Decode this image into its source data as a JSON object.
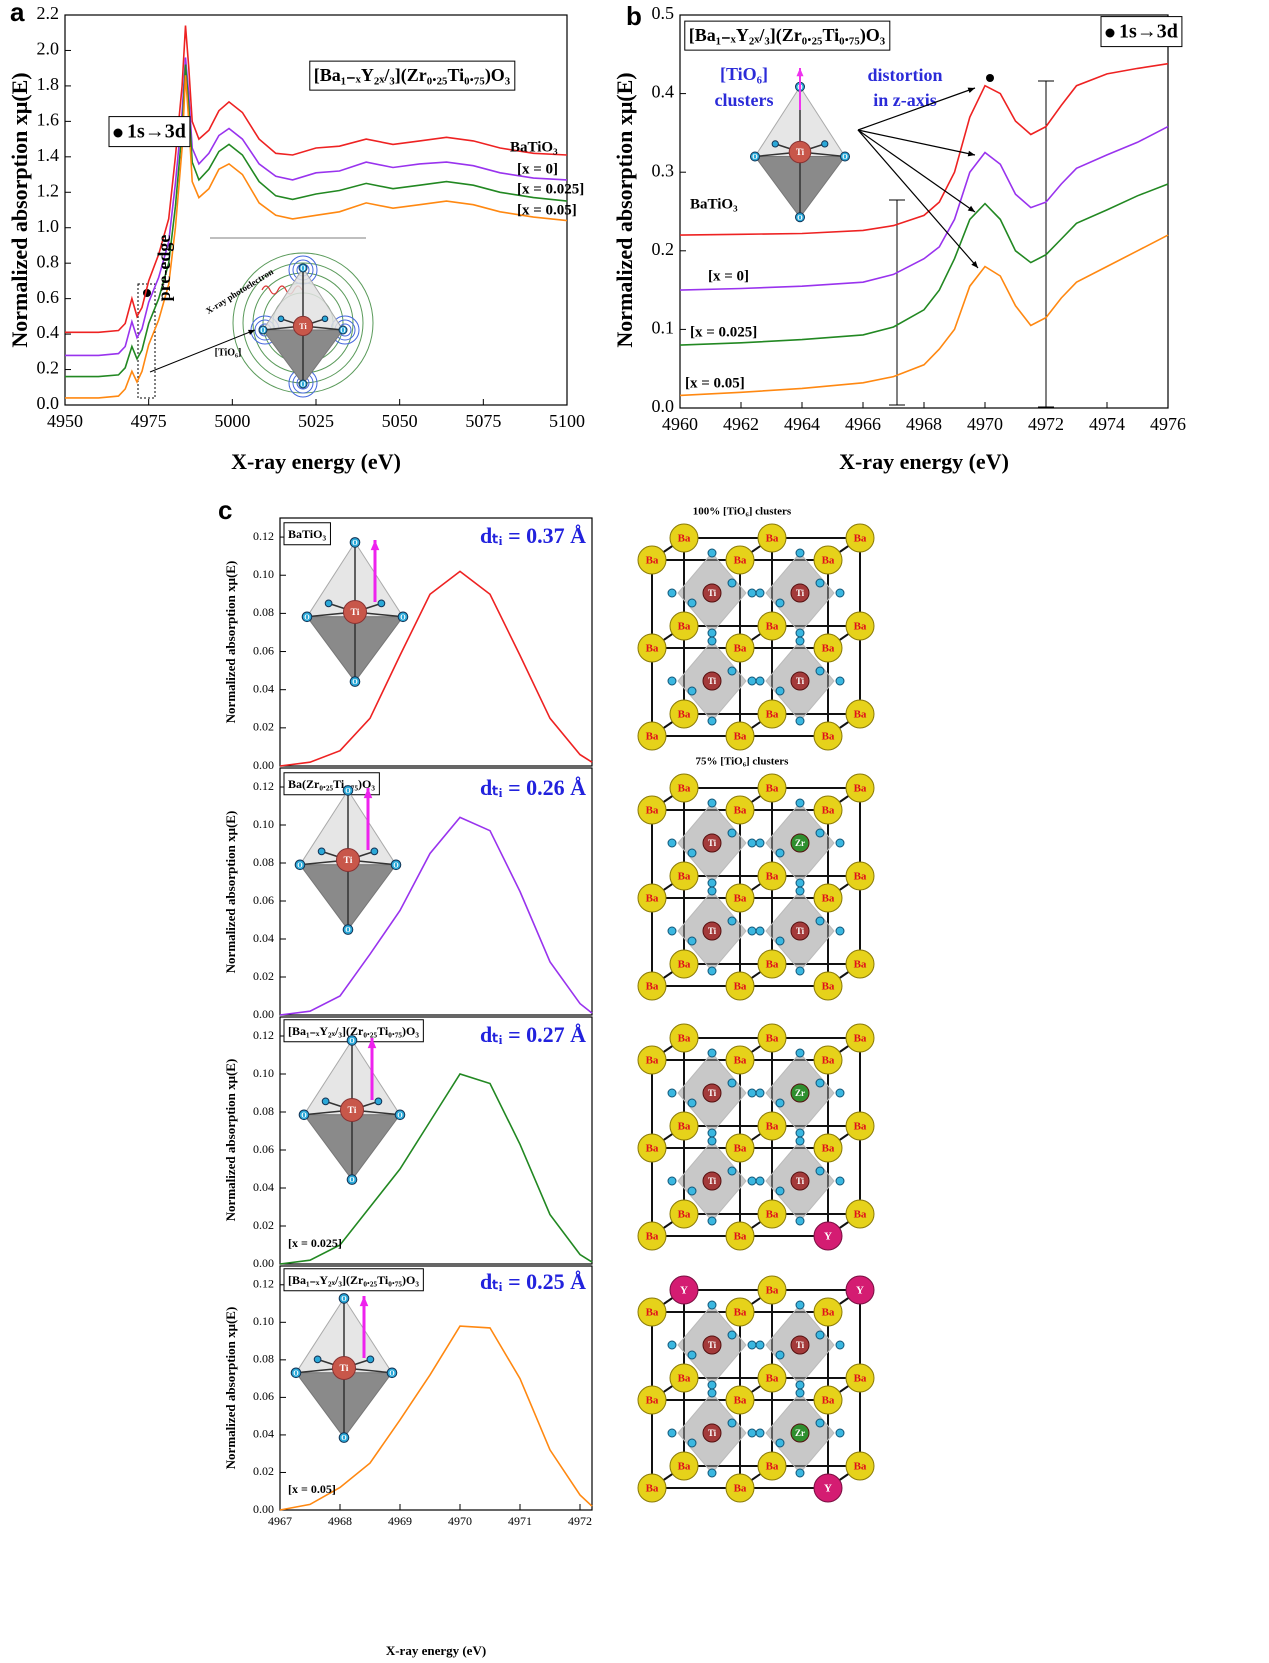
{
  "panel_labels": [
    "a",
    "b",
    "c"
  ],
  "octahedron": {
    "center": "Ti",
    "vertex": "O"
  },
  "illustrations": [
    {
      "caption": "100% [TiO₆] clusters",
      "atoms": [
        "Ba",
        "Ba",
        "Ba",
        "Ba",
        "Ba",
        "Ba",
        "Ba",
        "Ba",
        "Ba",
        "Ba",
        "Ba",
        "Ba",
        "Ba",
        "Ba",
        "Ba",
        "Ba",
        "Ba",
        "Ba"
      ],
      "centers": [
        "Ti",
        "Ti",
        "Ti",
        "Ti"
      ]
    },
    {
      "caption": "75% [TiO₆] clusters",
      "atoms": [
        "Ba",
        "Ba",
        "Ba",
        "Ba",
        "Ba",
        "Ba",
        "Ba",
        "Ba",
        "Ba",
        "Ba",
        "Ba",
        "Ba",
        "Ba",
        "Ba",
        "Ba",
        "Ba",
        "Ba",
        "Ba"
      ],
      "centers": [
        "Ti",
        "Zr",
        "Ti",
        "Ti"
      ]
    },
    {
      "atoms": [
        "Ba",
        "Ba",
        "Ba",
        "Ba",
        "Ba",
        "Ba",
        "Ba",
        "Ba",
        "Ba",
        "Ba",
        "Ba",
        "Ba",
        "Ba",
        "Ba",
        "Ba",
        "Ba",
        "Ba",
        "Y"
      ],
      "centers": [
        "Ti",
        "Zr",
        "Ti",
        "Ti"
      ]
    },
    {
      "atoms": [
        "Y",
        "Ba",
        "Y",
        "Ba",
        "Ba",
        "Ba",
        "Ba",
        "Ba",
        "Ba",
        "Ba",
        "Ba",
        "Ba",
        "Ba",
        "Ba",
        "Ba",
        "Ba",
        "Ba",
        "Y"
      ],
      "centers": [
        "Ti",
        "Ti",
        "Ti",
        "Zr"
      ]
    }
  ],
  "chart_data": [
    {
      "type": "line",
      "xlabel": "X-ray energy (eV)",
      "ylabel": "Normalized absorption xμ(E)",
      "xlim": [
        4950,
        5100
      ],
      "xticks": [
        4950,
        4975,
        5000,
        5025,
        5050,
        5075,
        5100
      ],
      "ylim": [
        0,
        2.2
      ],
      "yticks": [
        {
          "value": 0,
          "label": "0.0"
        },
        0.2,
        0.4,
        0.6,
        0.8,
        {
          "value": 1,
          "label": "1.0"
        },
        1.2,
        1.4,
        1.6,
        1.8,
        {
          "value": 2,
          "label": "2.0"
        },
        2.2
      ],
      "annotations": [
        "[Ba₁₋ₓY₂ₓ/₃](Zr₀.₂₅Ti₀.₇₅)O₃",
        "1s→3d",
        "pre-edge",
        "X-ray photoelectron",
        "[TiO₆]"
      ],
      "x": [
        4950,
        4960,
        4966,
        4968,
        4970,
        4971.5,
        4973,
        4975,
        4978,
        4981,
        4983,
        4985,
        4986,
        4987,
        4988,
        4990,
        4993,
        4996,
        4999,
        5003,
        5008,
        5013,
        5018,
        5025,
        5032,
        5040,
        5048,
        5056,
        5064,
        5072,
        5080,
        5090,
        5100
      ],
      "series": [
        {
          "name": "BaTiO₃",
          "color": "#ee2222",
          "values": [
            0.41,
            0.41,
            0.42,
            0.46,
            0.6,
            0.5,
            0.55,
            0.7,
            0.85,
            1.05,
            1.4,
            1.8,
            2.14,
            1.9,
            1.6,
            1.5,
            1.55,
            1.66,
            1.71,
            1.65,
            1.5,
            1.42,
            1.41,
            1.45,
            1.46,
            1.5,
            1.47,
            1.49,
            1.51,
            1.49,
            1.45,
            1.42,
            1.41
          ]
        },
        {
          "name": "[x = 0]",
          "color": "#9933ee",
          "values": [
            0.28,
            0.28,
            0.29,
            0.33,
            0.47,
            0.38,
            0.43,
            0.58,
            0.72,
            0.92,
            1.25,
            1.65,
            1.96,
            1.75,
            1.45,
            1.36,
            1.42,
            1.52,
            1.56,
            1.5,
            1.36,
            1.29,
            1.27,
            1.31,
            1.32,
            1.37,
            1.34,
            1.36,
            1.37,
            1.35,
            1.31,
            1.28,
            1.27
          ]
        },
        {
          "name": "[x = 0.025]",
          "color": "#228822",
          "values": [
            0.16,
            0.16,
            0.17,
            0.21,
            0.33,
            0.26,
            0.31,
            0.46,
            0.6,
            0.8,
            1.12,
            1.55,
            1.92,
            1.68,
            1.37,
            1.27,
            1.33,
            1.43,
            1.47,
            1.41,
            1.26,
            1.18,
            1.16,
            1.19,
            1.21,
            1.25,
            1.22,
            1.24,
            1.26,
            1.24,
            1.2,
            1.17,
            1.15
          ]
        },
        {
          "name": "[x = 0.05]",
          "color": "#ff8811",
          "values": [
            0.04,
            0.04,
            0.05,
            0.09,
            0.19,
            0.13,
            0.19,
            0.34,
            0.48,
            0.68,
            1.0,
            1.45,
            1.86,
            1.6,
            1.26,
            1.17,
            1.22,
            1.33,
            1.36,
            1.3,
            1.14,
            1.07,
            1.05,
            1.07,
            1.09,
            1.14,
            1.11,
            1.13,
            1.15,
            1.13,
            1.09,
            1.06,
            1.04
          ]
        }
      ]
    },
    {
      "type": "line",
      "xlabel": "X-ray energy (eV)",
      "ylabel": "Normalized absorption xμ(E)",
      "xlim": [
        4960,
        4976
      ],
      "xticks": [
        4960,
        4962,
        4964,
        4966,
        4968,
        4970,
        4972,
        4974,
        4976
      ],
      "ylim": [
        0,
        0.5
      ],
      "yticks": [
        {
          "value": 0,
          "label": "0.0"
        },
        0.1,
        0.2,
        0.3,
        0.4,
        0.5
      ],
      "annotations": [
        "[Ba₁₋ₓY₂ₓ/₃](Zr₀.₂₅Ti₀.₇₅)O₃",
        "1s→3d",
        "[TiO₆]",
        "clusters",
        "distortion",
        "in z-axis"
      ],
      "x": [
        4960,
        4962,
        4964,
        4966,
        4967,
        4968,
        4968.5,
        4969,
        4969.5,
        4970,
        4970.5,
        4971,
        4971.5,
        4972,
        4972.5,
        4973,
        4974,
        4975,
        4976
      ],
      "series": [
        {
          "name": "BaTiO₃",
          "color": "#ee2222",
          "values": [
            0.22,
            0.221,
            0.222,
            0.226,
            0.232,
            0.245,
            0.262,
            0.3,
            0.37,
            0.41,
            0.4,
            0.365,
            0.348,
            0.358,
            0.385,
            0.41,
            0.425,
            0.432,
            0.438
          ]
        },
        {
          "name": "[x = 0]",
          "color": "#9933ee",
          "values": [
            0.15,
            0.152,
            0.155,
            0.16,
            0.17,
            0.19,
            0.205,
            0.24,
            0.3,
            0.325,
            0.31,
            0.272,
            0.255,
            0.262,
            0.285,
            0.305,
            0.322,
            0.338,
            0.358
          ]
        },
        {
          "name": "[x = 0.025]",
          "color": "#228822",
          "values": [
            0.08,
            0.083,
            0.087,
            0.093,
            0.103,
            0.125,
            0.15,
            0.19,
            0.24,
            0.26,
            0.24,
            0.2,
            0.185,
            0.195,
            0.215,
            0.235,
            0.252,
            0.27,
            0.285
          ]
        },
        {
          "name": "[x = 0.05]",
          "color": "#ff8811",
          "values": [
            0.016,
            0.02,
            0.025,
            0.032,
            0.04,
            0.055,
            0.075,
            0.1,
            0.155,
            0.18,
            0.168,
            0.13,
            0.105,
            0.115,
            0.14,
            0.16,
            0.18,
            0.2,
            0.22
          ]
        }
      ]
    },
    {
      "type": "line",
      "ylabel": "Normalized absorption xμ(E)",
      "xlim": [
        4967,
        4972.2
      ],
      "ylim": [
        0,
        0.13
      ],
      "yticks": [
        {
          "value": 0,
          "label": "0.00"
        },
        0.02,
        0.04,
        0.06,
        0.08,
        {
          "value": 0.1,
          "label": "0.10"
        },
        0.12
      ],
      "annotations": [
        "BaTiO₃",
        "dₜᵢ = 0.37 Å"
      ],
      "x": [
        4967,
        4967.5,
        4968,
        4968.5,
        4969,
        4969.5,
        4970,
        4970.5,
        4971,
        4971.5,
        4972,
        4972.2
      ],
      "series": [
        {
          "color": "#ee2222",
          "values": [
            0.0,
            0.002,
            0.008,
            0.025,
            0.058,
            0.09,
            0.102,
            0.09,
            0.058,
            0.025,
            0.006,
            0.002
          ]
        }
      ]
    },
    {
      "type": "line",
      "ylabel": "Normalized absorption xμ(E)",
      "xlim": [
        4967,
        4972.2
      ],
      "ylim": [
        0,
        0.13
      ],
      "yticks": [
        {
          "value": 0,
          "label": "0.00"
        },
        0.02,
        0.04,
        0.06,
        0.08,
        {
          "value": 0.1,
          "label": "0.10"
        },
        0.12
      ],
      "annotations": [
        "Ba(Zr₀.₂₅Ti₀.₇₅)O₃",
        "dₜᵢ = 0.26 Å"
      ],
      "x": [
        4967,
        4967.5,
        4968,
        4968.5,
        4969,
        4969.5,
        4970,
        4970.5,
        4971,
        4971.5,
        4972,
        4972.2
      ],
      "series": [
        {
          "color": "#9933ee",
          "values": [
            0.0,
            0.002,
            0.01,
            0.032,
            0.055,
            0.085,
            0.104,
            0.097,
            0.065,
            0.028,
            0.006,
            0.001
          ]
        }
      ]
    },
    {
      "type": "line",
      "ylabel": "Normalized absorption xμ(E)",
      "xlim": [
        4967,
        4972.2
      ],
      "ylim": [
        0,
        0.13
      ],
      "yticks": [
        {
          "value": 0,
          "label": "0.00"
        },
        0.02,
        0.04,
        0.06,
        0.08,
        {
          "value": 0.1,
          "label": "0.10"
        },
        0.12
      ],
      "annotations": [
        "[Ba₁₋ₓY₂ₓ/₃](Zr₀.₂₅Ti₀.₇₅)O₃",
        "dₜᵢ = 0.27 Å",
        "[x = 0.025]"
      ],
      "x": [
        4967,
        4967.5,
        4968,
        4968.5,
        4969,
        4969.5,
        4970,
        4970.5,
        4971,
        4971.5,
        4972,
        4972.2
      ],
      "series": [
        {
          "color": "#228822",
          "values": [
            0.0,
            0.002,
            0.01,
            0.03,
            0.05,
            0.075,
            0.1,
            0.095,
            0.063,
            0.026,
            0.005,
            0.001
          ]
        }
      ]
    },
    {
      "type": "line",
      "xlabel": "X-ray energy (eV)",
      "ylabel": "Normalized absorption xμ(E)",
      "xlim": [
        4967,
        4972.2
      ],
      "xticks": [
        4967,
        4968,
        4969,
        4970,
        4971,
        4972
      ],
      "ylim": [
        0,
        0.13
      ],
      "yticks": [
        {
          "value": 0,
          "label": "0.00"
        },
        0.02,
        0.04,
        0.06,
        0.08,
        {
          "value": 0.1,
          "label": "0.10"
        },
        0.12
      ],
      "annotations": [
        "[Ba₁₋ₓY₂ₓ/₃](Zr₀.₂₅Ti₀.₇₅)O₃",
        "dₜᵢ = 0.25 Å",
        "[x = 0.05]"
      ],
      "x": [
        4967,
        4967.5,
        4968,
        4968.5,
        4969,
        4969.5,
        4970,
        4970.5,
        4971,
        4971.5,
        4972,
        4972.2
      ],
      "series": [
        {
          "color": "#ff8811",
          "values": [
            0.0,
            0.003,
            0.012,
            0.025,
            0.048,
            0.072,
            0.098,
            0.097,
            0.07,
            0.032,
            0.008,
            0.002
          ]
        }
      ]
    }
  ]
}
